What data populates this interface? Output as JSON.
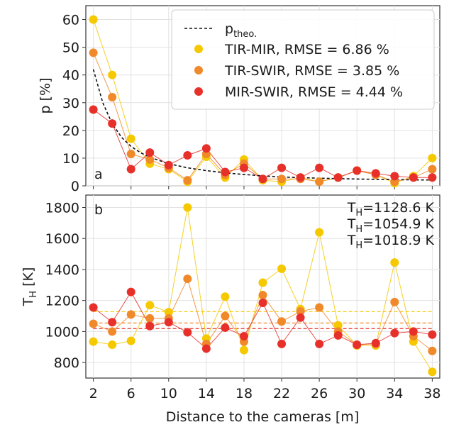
{
  "x_axis": {
    "label": "Distance to the cameras [m]",
    "ticks": [
      2,
      6,
      10,
      14,
      18,
      22,
      26,
      30,
      34,
      38
    ],
    "range": [
      1.2,
      38.8
    ]
  },
  "colors": {
    "tir_mir": "#f5c800",
    "tir_swir": "#f0892a",
    "mir_swir": "#e8302a",
    "theory": "#111111"
  },
  "chart_data": [
    {
      "panel": "a",
      "type": "scatter",
      "ylabel": "p [%]",
      "ylim": [
        0,
        65
      ],
      "yticks": [
        0,
        10,
        20,
        30,
        40,
        50,
        60
      ],
      "grid": true,
      "legend_placement": "top-right",
      "x": [
        2,
        4,
        6,
        8,
        10,
        12,
        14,
        16,
        18,
        20,
        22,
        24,
        26,
        28,
        30,
        32,
        34,
        36,
        38
      ],
      "theory": {
        "label_main": "p",
        "label_sub": "theo.",
        "x": [
          2,
          3,
          4,
          5,
          6,
          7,
          8,
          10,
          12,
          14,
          16,
          18,
          20,
          22,
          24,
          26,
          28,
          30,
          32,
          34,
          36,
          38
        ],
        "y": [
          42,
          30,
          22.4,
          17.5,
          14.2,
          12,
          10.3,
          8.0,
          6.5,
          5.5,
          4.7,
          4.1,
          3.6,
          3.2,
          2.95,
          2.75,
          2.6,
          2.45,
          2.35,
          2.25,
          2.15,
          2.1
        ]
      },
      "series": [
        {
          "name": "TIR-MIR, RMSE = 6.86 %",
          "key": "tir_mir",
          "y": [
            60,
            40,
            17,
            8,
            6,
            1.5,
            10.5,
            3,
            9.5,
            2,
            1.5,
            3,
            1.5,
            3,
            5.5,
            4,
            1,
            3.5,
            10
          ]
        },
        {
          "name": "TIR-SWIR, RMSE = 3.85 %",
          "key": "tir_swir",
          "y": [
            48,
            32,
            11.5,
            9.5,
            6.5,
            2,
            11.5,
            4,
            8,
            2.5,
            2.5,
            2.5,
            1.5,
            3,
            5.5,
            4,
            1.5,
            3,
            6
          ]
        },
        {
          "name": "MIR-SWIR, RMSE = 4.44 %",
          "key": "mir_swir",
          "y": [
            27.5,
            22.5,
            6,
            12,
            7.5,
            11,
            13.5,
            5,
            6.5,
            2.5,
            6.5,
            3,
            6.5,
            3,
            5.5,
            4.5,
            3.5,
            3,
            3
          ]
        }
      ]
    },
    {
      "panel": "b",
      "type": "line",
      "ylabel_main": "T",
      "ylabel_sub": "H",
      "ylabel_tail": " [K]",
      "ylim": [
        700,
        1880
      ],
      "yticks": [
        800,
        1000,
        1200,
        1400,
        1600,
        1800
      ],
      "grid": true,
      "x": [
        2,
        4,
        6,
        8,
        10,
        12,
        14,
        16,
        18,
        20,
        22,
        24,
        26,
        28,
        30,
        32,
        34,
        36,
        38
      ],
      "series": [
        {
          "key": "tir_mir",
          "mean": 1128.6,
          "mean_label_main": "T",
          "mean_label_sub": "H",
          "mean_label_tail": "=1128.6 K",
          "y": [
            935,
            915,
            940,
            1170,
            1125,
            1800,
            955,
            1225,
            880,
            1315,
            1405,
            1145,
            1640,
            1040,
            910,
            910,
            1445,
            935,
            740
          ]
        },
        {
          "key": "tir_swir",
          "mean": 1054.9,
          "mean_label_main": "T",
          "mean_label_sub": "H",
          "mean_label_tail": "=1054.9 K",
          "y": [
            1050,
            1000,
            1110,
            1085,
            1085,
            1340,
            920,
            1100,
            935,
            1235,
            1065,
            1130,
            1155,
            1000,
            915,
            920,
            1190,
            970,
            875
          ]
        },
        {
          "key": "mir_swir",
          "mean": 1018.9,
          "mean_label_main": "T",
          "mean_label_sub": "H",
          "mean_label_tail": "=1018.9 K",
          "y": [
            1155,
            1060,
            1255,
            1035,
            1060,
            995,
            890,
            1025,
            970,
            1185,
            920,
            1090,
            920,
            975,
            915,
            925,
            990,
            1000,
            980
          ]
        }
      ]
    }
  ],
  "labels": {
    "panel_a": "a",
    "panel_b": "b"
  }
}
